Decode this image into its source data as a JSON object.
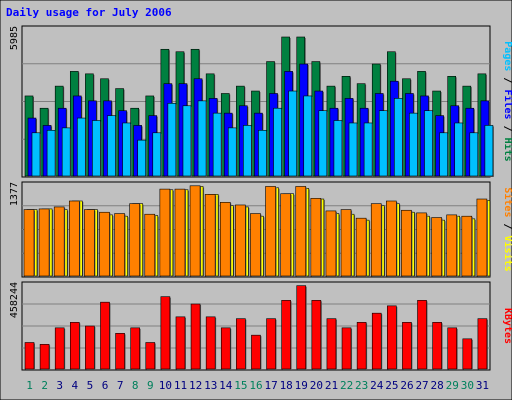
{
  "chart_data": {
    "type": "bar",
    "title": "Daily usage for July 2006",
    "x": [
      1,
      2,
      3,
      4,
      5,
      6,
      7,
      8,
      9,
      10,
      11,
      12,
      13,
      14,
      15,
      16,
      17,
      18,
      19,
      20,
      21,
      22,
      23,
      24,
      25,
      26,
      27,
      28,
      29,
      30,
      31
    ],
    "weekend_days": [
      1,
      2,
      8,
      9,
      15,
      16,
      22,
      23,
      29,
      30
    ],
    "panels": [
      {
        "id": "top",
        "ymax_label": "5985",
        "ylim": [
          0,
          5985
        ],
        "legend": [
          {
            "text": "Pages",
            "color": "#00c0ff"
          },
          {
            "text": " / ",
            "color": "#000000"
          },
          {
            "text": "Files",
            "color": "#0000ff"
          },
          {
            "text": " / ",
            "color": "#000000"
          },
          {
            "text": "Hits",
            "color": "#008040"
          }
        ],
        "series": [
          {
            "name": "Hits",
            "color": "#008040",
            "values": [
              3300,
              2800,
              3700,
              4300,
              4200,
              4000,
              3600,
              2800,
              3300,
              5200,
              5100,
              5200,
              4200,
              3400,
              3700,
              3500,
              4700,
              5700,
              5700,
              4700,
              3700,
              4100,
              3800,
              4600,
              5100,
              4000,
              4300,
              3500,
              4100,
              3700,
              4200
            ]
          },
          {
            "name": "Files",
            "color": "#0000ff",
            "values": [
              2400,
              2100,
              2800,
              3300,
              3100,
              3100,
              2700,
              2100,
              2500,
              3800,
              3800,
              4000,
              3200,
              2600,
              2900,
              2600,
              3400,
              4300,
              4600,
              3500,
              2800,
              3200,
              2800,
              3400,
              3900,
              3400,
              3300,
              2500,
              2900,
              2800,
              3100
            ]
          },
          {
            "name": "Pages",
            "color": "#00c0ff",
            "values": [
              1800,
              1900,
              2000,
              2400,
              2300,
              2500,
              2200,
              1500,
              1800,
              3000,
              2900,
              3100,
              2600,
              2000,
              2100,
              1900,
              2800,
              3500,
              3300,
              2700,
              2300,
              2200,
              2200,
              2700,
              3200,
              2600,
              2700,
              1800,
              2200,
              1800,
              2100
            ]
          }
        ]
      },
      {
        "id": "middle",
        "ymax_label": "1377",
        "ylim": [
          0,
          1377
        ],
        "legend": [
          {
            "text": "Sites",
            "color": "#ff8000"
          },
          {
            "text": " / ",
            "color": "#000000"
          },
          {
            "text": "Visits",
            "color": "#ffff00"
          }
        ],
        "series": [
          {
            "name": "Visits",
            "color": "#ffff00",
            "values": [
              1020,
              1030,
              1020,
              1150,
              1020,
              940,
              920,
              1110,
              930,
              1320,
              1320,
              1370,
              1250,
              1080,
              1060,
              920,
              1350,
              1260,
              1340,
              1180,
              960,
              950,
              860,
              1080,
              1110,
              980,
              920,
              860,
              920,
              880,
              1160
            ]
          },
          {
            "name": "Sites",
            "color": "#ff8000",
            "values": [
              1020,
              1030,
              1060,
              1150,
              1020,
              980,
              960,
              1110,
              950,
              1330,
              1330,
              1380,
              1250,
              1130,
              1090,
              960,
              1370,
              1260,
              1370,
              1190,
              1000,
              1020,
              890,
              1110,
              1150,
              1010,
              970,
              900,
              940,
              920,
              1180
            ]
          }
        ]
      },
      {
        "id": "bottom",
        "ymax_label": "458244",
        "ylim": [
          0,
          458244
        ],
        "legend": [
          {
            "text": "KBytes",
            "color": "#ff0000"
          }
        ],
        "series": [
          {
            "name": "KBytes",
            "color": "#ff0000",
            "values": [
              150000,
              140000,
              230000,
              260000,
              240000,
              370000,
              200000,
              230000,
              150000,
              400000,
              290000,
              360000,
              290000,
              230000,
              280000,
              190000,
              280000,
              380000,
              460000,
              380000,
              280000,
              230000,
              260000,
              310000,
              350000,
              260000,
              380000,
              260000,
              230000,
              170000,
              280000
            ]
          }
        ]
      }
    ]
  }
}
